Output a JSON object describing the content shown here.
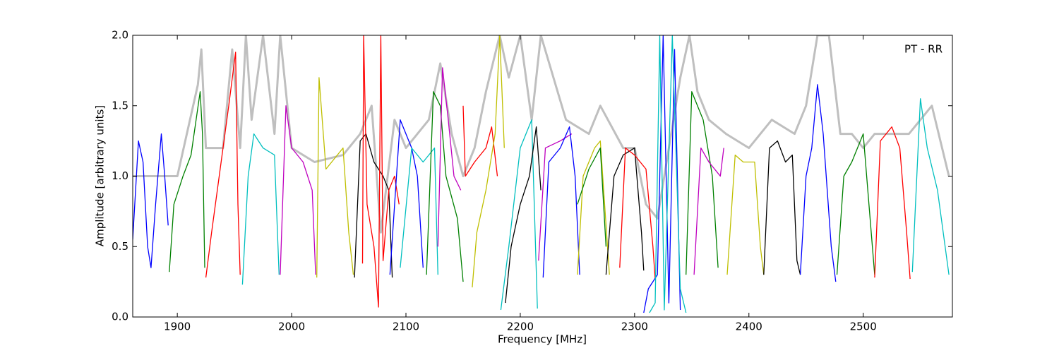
{
  "chart_data": {
    "type": "line",
    "annotation": "PT - RR",
    "x_label": "Frequency [MHz]",
    "y_label": "Amplitude [arbitrary units]",
    "xlim": [
      1861,
      2578
    ],
    "ylim": [
      0,
      2
    ],
    "xticks": [
      1900,
      2000,
      2100,
      2200,
      2300,
      2400,
      2500
    ],
    "yticks": [
      {
        "value": 0,
        "label": "0.0"
      },
      {
        "value": 0.5,
        "label": "0.5"
      },
      {
        "value": 1,
        "label": "1.0"
      },
      {
        "value": 1.5,
        "label": "1.5"
      },
      {
        "value": 2,
        "label": "2.0"
      }
    ],
    "series": [
      {
        "color": "#bfbfbf",
        "x": [
          1861,
          1900,
          1918,
          1921,
          1925,
          1940,
          1948,
          1955,
          1960,
          1965,
          1975,
          1985,
          1990,
          2000,
          2020,
          2045,
          2060,
          2070,
          2078,
          2090,
          2100,
          2120,
          2130,
          2140,
          2150,
          2160,
          2170,
          2182,
          2190,
          2200,
          2210,
          2218,
          2240,
          2260,
          2270,
          2290,
          2300,
          2310,
          2320,
          2340,
          2348,
          2355,
          2365,
          2380,
          2400,
          2420,
          2440,
          2450,
          2460,
          2470,
          2480,
          2490,
          2500,
          2510,
          2540,
          2560,
          2575
        ],
        "values": [
          1.0,
          1.0,
          1.65,
          1.9,
          1.2,
          1.2,
          1.9,
          1.2,
          2.0,
          1.4,
          2.0,
          1.3,
          2.0,
          1.2,
          1.1,
          1.15,
          1.3,
          1.5,
          0.6,
          1.4,
          1.2,
          1.4,
          1.8,
          1.3,
          1.0,
          1.2,
          1.6,
          2.0,
          1.7,
          2.0,
          1.4,
          2.0,
          1.4,
          1.3,
          1.5,
          1.2,
          1.2,
          0.8,
          0.7,
          1.7,
          2.0,
          1.6,
          1.4,
          1.3,
          1.2,
          1.4,
          1.3,
          1.5,
          2.0,
          2.0,
          1.3,
          1.3,
          1.2,
          1.3,
          1.3,
          1.5,
          1.0
        ]
      },
      {
        "color": "#0000ff",
        "x": [
          1861,
          1866,
          1870,
          1874,
          1877,
          1881,
          1886,
          1889,
          1892
        ],
        "values": [
          0.55,
          1.25,
          1.1,
          0.5,
          0.35,
          0.8,
          1.3,
          1.0,
          0.65
        ]
      },
      {
        "color": "#008000",
        "x": [
          1893,
          1897,
          1905,
          1912,
          1920,
          1922,
          1924
        ],
        "values": [
          0.32,
          0.8,
          1.0,
          1.15,
          1.6,
          1.3,
          0.35
        ]
      },
      {
        "color": "#ff0000",
        "x": [
          1925,
          1930,
          1940,
          1945,
          1951,
          1953,
          1955
        ],
        "values": [
          0.28,
          0.6,
          1.2,
          1.5,
          1.88,
          0.8,
          0.3
        ]
      },
      {
        "color": "#00bfbf",
        "x": [
          1957,
          1962,
          1967,
          1975,
          1985,
          1989
        ],
        "values": [
          0.23,
          1.0,
          1.3,
          1.2,
          1.15,
          0.3
        ]
      },
      {
        "color": "#bf00bf",
        "x": [
          1990,
          1995,
          2000,
          2010,
          2018,
          2021
        ],
        "values": [
          0.3,
          1.5,
          1.2,
          1.1,
          0.9,
          0.3
        ]
      },
      {
        "color": "#bfbf00",
        "x": [
          2022,
          2024,
          2030,
          2040,
          2045,
          2050,
          2054
        ],
        "values": [
          0.28,
          1.7,
          1.05,
          1.15,
          1.2,
          0.6,
          0.3
        ]
      },
      {
        "color": "#000000",
        "x": [
          2055,
          2060,
          2065,
          2072,
          2080,
          2085,
          2088
        ],
        "values": [
          0.28,
          1.25,
          1.3,
          1.1,
          1.0,
          0.9,
          0.28
        ]
      },
      {
        "color": "#ff0000",
        "x": [
          2062,
          2063,
          2066,
          2072,
          2076,
          2078,
          2080,
          2085,
          2090,
          2094
        ],
        "values": [
          0.38,
          2.0,
          0.8,
          0.5,
          0.07,
          2.0,
          0.4,
          0.9,
          1.0,
          0.8
        ]
      },
      {
        "color": "#0000ff",
        "x": [
          2086,
          2095,
          2105,
          2110,
          2115
        ],
        "values": [
          0.3,
          1.4,
          1.2,
          1.0,
          0.35
        ]
      },
      {
        "color": "#00bfbf",
        "x": [
          2095,
          2105,
          2115,
          2125,
          2128
        ],
        "values": [
          0.35,
          1.2,
          1.1,
          1.2,
          0.3
        ]
      },
      {
        "color": "#008000",
        "x": [
          2118,
          2124,
          2130,
          2135,
          2145,
          2150
        ],
        "values": [
          0.3,
          1.6,
          1.5,
          1.0,
          0.7,
          0.25
        ]
      },
      {
        "color": "#bf00bf",
        "x": [
          2128,
          2132,
          2137,
          2142,
          2148
        ],
        "values": [
          0.5,
          1.77,
          1.4,
          1.0,
          0.9
        ]
      },
      {
        "color": "#ff0000",
        "x": [
          2150,
          2152,
          2160,
          2170,
          2175,
          2180
        ],
        "values": [
          1.5,
          1.0,
          1.1,
          1.2,
          1.35,
          1.0
        ]
      },
      {
        "color": "#bfbf00",
        "x": [
          2158,
          2162,
          2170,
          2178,
          2182,
          2186
        ],
        "values": [
          0.21,
          0.6,
          0.9,
          1.3,
          2.0,
          1.2
        ]
      },
      {
        "color": "#00bfbf",
        "x": [
          2183,
          2190,
          2200,
          2210,
          2215
        ],
        "values": [
          0.05,
          0.5,
          1.2,
          1.4,
          0.06
        ]
      },
      {
        "color": "#000000",
        "x": [
          2187,
          2192,
          2200,
          2208,
          2214,
          2218
        ],
        "values": [
          0.1,
          0.5,
          0.8,
          1.0,
          1.35,
          0.9
        ]
      },
      {
        "color": "#bf00bf",
        "x": [
          2216,
          2222,
          2235,
          2245
        ],
        "values": [
          0.4,
          1.2,
          1.25,
          1.3
        ]
      },
      {
        "color": "#0000ff",
        "x": [
          2220,
          2225,
          2235,
          2243,
          2248,
          2252
        ],
        "values": [
          0.28,
          1.1,
          1.2,
          1.35,
          1.0,
          0.3
        ]
      },
      {
        "color": "#bfbf00",
        "x": [
          2250,
          2255,
          2265,
          2270,
          2278
        ],
        "values": [
          0.3,
          1.0,
          1.2,
          1.25,
          0.3
        ]
      },
      {
        "color": "#008000",
        "x": [
          2250,
          2260,
          2270,
          2275
        ],
        "values": [
          0.8,
          1.05,
          1.2,
          0.5
        ]
      },
      {
        "color": "#000000",
        "x": [
          2275,
          2282,
          2290,
          2300,
          2306,
          2308
        ],
        "values": [
          0.3,
          1.0,
          1.15,
          1.2,
          0.6,
          0.33
        ]
      },
      {
        "color": "#ff0000",
        "x": [
          2287,
          2292,
          2300,
          2310,
          2316,
          2318
        ],
        "values": [
          0.35,
          1.2,
          1.15,
          1.05,
          0.5,
          0.27
        ]
      },
      {
        "color": "#0000ff",
        "x": [
          2308,
          2312,
          2320,
          2325,
          2330,
          2335,
          2340
        ],
        "values": [
          0.03,
          0.2,
          0.3,
          2.0,
          0.1,
          1.9,
          0.05
        ]
      },
      {
        "color": "#00bfbf",
        "x": [
          2313,
          2318,
          2322,
          2326,
          2333,
          2340,
          2345
        ],
        "values": [
          0.03,
          0.1,
          2.0,
          0.05,
          2.0,
          0.2,
          0.03
        ]
      },
      {
        "color": "#008000",
        "x": [
          2345,
          2350,
          2360,
          2368,
          2373
        ],
        "values": [
          0.3,
          1.6,
          1.4,
          1.0,
          0.35
        ]
      },
      {
        "color": "#bf00bf",
        "x": [
          2352,
          2358,
          2365,
          2375,
          2378
        ],
        "values": [
          0.3,
          1.2,
          1.1,
          1.0,
          1.2
        ]
      },
      {
        "color": "#bfbf00",
        "x": [
          2381,
          2388,
          2395,
          2405,
          2410,
          2413
        ],
        "values": [
          0.3,
          1.15,
          1.1,
          1.1,
          0.5,
          0.3
        ]
      },
      {
        "color": "#000000",
        "x": [
          2413,
          2418,
          2425,
          2432,
          2438,
          2442,
          2445
        ],
        "values": [
          0.3,
          1.2,
          1.25,
          1.1,
          1.15,
          0.4,
          0.3
        ]
      },
      {
        "color": "#0000ff",
        "x": [
          2445,
          2450,
          2455,
          2460,
          2465,
          2472,
          2476
        ],
        "values": [
          0.3,
          1.0,
          1.2,
          1.65,
          1.3,
          0.5,
          0.25
        ]
      },
      {
        "color": "#008000",
        "x": [
          2477,
          2483,
          2490,
          2500,
          2505,
          2510
        ],
        "values": [
          0.3,
          1.0,
          1.1,
          1.3,
          0.8,
          0.3
        ]
      },
      {
        "color": "#ff0000",
        "x": [
          2510,
          2515,
          2525,
          2532,
          2538,
          2541
        ],
        "values": [
          0.28,
          1.25,
          1.35,
          1.2,
          0.6,
          0.27
        ]
      },
      {
        "color": "#00bfbf",
        "x": [
          2543,
          2550,
          2556,
          2565,
          2575
        ],
        "values": [
          0.32,
          1.55,
          1.2,
          0.9,
          0.3
        ]
      }
    ]
  }
}
